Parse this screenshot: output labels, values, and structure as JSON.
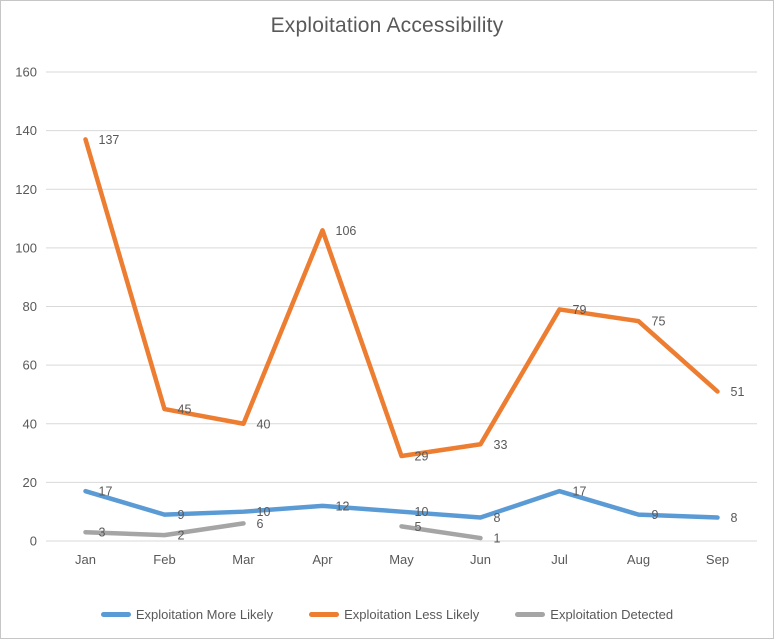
{
  "chart_data": {
    "type": "line",
    "title": "Exploitation Accessibility",
    "categories": [
      "Jan",
      "Feb",
      "Mar",
      "Apr",
      "May",
      "Jun",
      "Jul",
      "Aug",
      "Sep"
    ],
    "series": [
      {
        "name": "Exploitation More Likely",
        "color": "#5B9BD5",
        "values": [
          17,
          9,
          10,
          12,
          10,
          8,
          17,
          9,
          8
        ]
      },
      {
        "name": "Exploitation Less Likely",
        "color": "#ED7D31",
        "values": [
          137,
          45,
          40,
          106,
          29,
          33,
          79,
          75,
          51
        ]
      },
      {
        "name": "Exploitation Detected",
        "color": "#A5A5A5",
        "values": [
          3,
          2,
          6,
          null,
          5,
          1,
          null,
          null,
          null
        ]
      }
    ],
    "yticks": [
      0,
      20,
      40,
      60,
      80,
      100,
      120,
      140,
      160
    ],
    "ylim": [
      0,
      160
    ],
    "grid": true,
    "legend_position": "bottom",
    "data_labels": true
  },
  "colors": {
    "text": "#595959",
    "data_label": "#595959",
    "gridline": "#D9D9D9",
    "background": "#FFFFFF",
    "frame_border": "#C6C6C6"
  }
}
